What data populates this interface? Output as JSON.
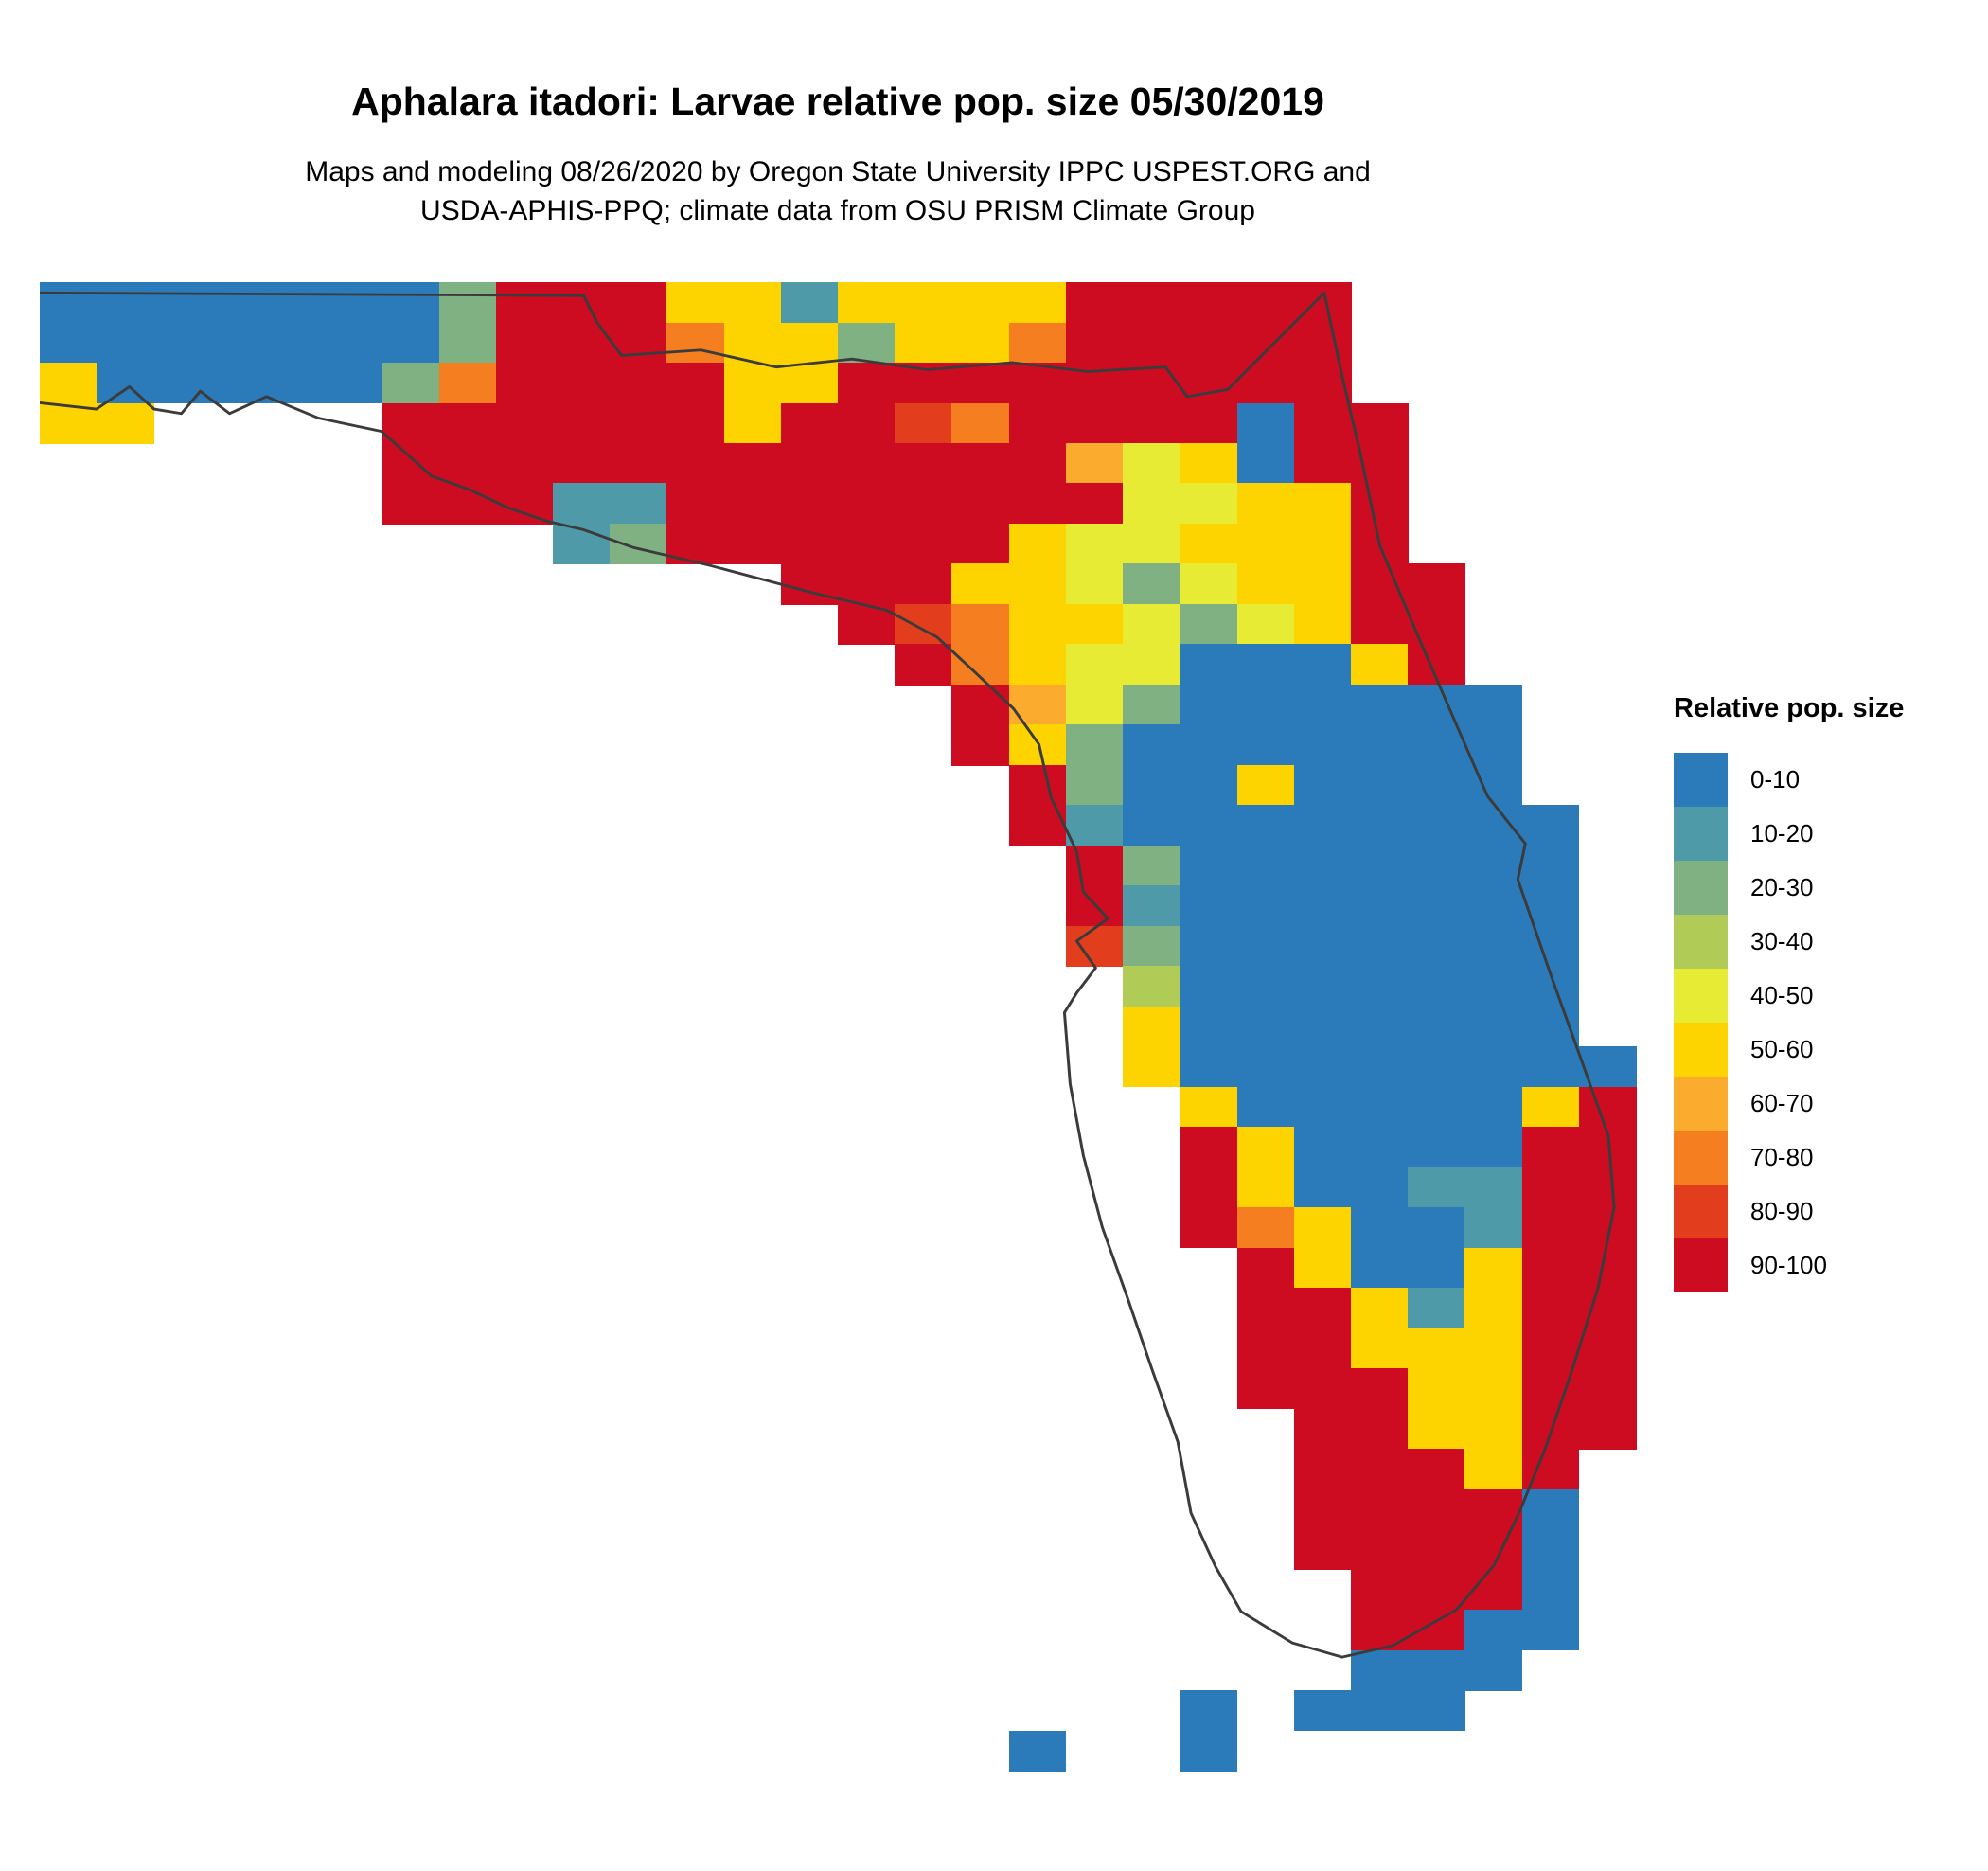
{
  "header": {
    "title": "Aphalara itadori: Larvae relative pop. size 05/30/2019",
    "subtitle_line1": "Maps and modeling 08/26/2020 by Oregon State University IPPC USPEST.ORG and",
    "subtitle_line2": "USDA-APHIS-PPQ; climate data from OSU PRISM Climate Group"
  },
  "legend": {
    "title": "Relative pop. size",
    "items": [
      {
        "label": "0-10",
        "color": "#2b7bba"
      },
      {
        "label": "10-20",
        "color": "#4e9aa8"
      },
      {
        "label": "20-30",
        "color": "#7fb183"
      },
      {
        "label": "30-40",
        "color": "#b0cc56"
      },
      {
        "label": "40-50",
        "color": "#e8eb34"
      },
      {
        "label": "50-60",
        "color": "#fed400"
      },
      {
        "label": "60-70",
        "color": "#fbab2d"
      },
      {
        "label": "70-80",
        "color": "#f57e20"
      },
      {
        "label": "80-90",
        "color": "#e23e1d"
      },
      {
        "label": "90-100",
        "color": "#cd0c22"
      }
    ]
  },
  "map": {
    "region": "Florida",
    "outline_color": "#3b3b3b",
    "grid": [
      "00000002999551555599999.....",
      "00000002999755255799999.....",
      "50000027999955999999999.....",
      "55....999999599879999099....",
      "......999999999999645099....",
      "......999119999999944559....",
      ".........129999995445559....",
      ".............999554245599...",
      "..............98755424599...",
      "...............9754400059...",
      "................9642000000..",
      "................9520000000..",
      ".................920050000..",
      ".................9100000000.",
      "..................920000000.",
      "..................910000000.",
      "..................820000000.",
      "...................30000000.",
      "...................50000000.",
      "...................500000000",
      "....................50000059",
      "....................95000099",
      "....................95001199",
      "....................97500199",
      ".....................9500599",
      ".....................9951599",
      ".....................9955599",
      ".....................9995599",
      "......................995599",
      "......................99959.",
      "......................99990.",
      "......................99990.",
      ".......................9990.",
      ".......................9900.",
      ".......................000..",
      "....................0.000...",
      ".................0..0......."
    ],
    "outline": [
      [
        0,
        12
      ],
      [
        576,
        15
      ],
      [
        590,
        45
      ],
      [
        616,
        82
      ],
      [
        700,
        76
      ],
      [
        780,
        95
      ],
      [
        860,
        86
      ],
      [
        940,
        98
      ],
      [
        1030,
        90
      ],
      [
        1110,
        100
      ],
      [
        1192,
        95
      ],
      [
        1215,
        128
      ],
      [
        1258,
        120
      ],
      [
        1360,
        12
      ],
      [
        1379,
        105
      ],
      [
        1399,
        195
      ],
      [
        1419,
        295
      ],
      [
        1459,
        395
      ],
      [
        1500,
        495
      ],
      [
        1533,
        575
      ],
      [
        1573,
        628
      ],
      [
        1565,
        668
      ],
      [
        1600,
        775
      ],
      [
        1634,
        875
      ],
      [
        1661,
        955
      ],
      [
        1667,
        1035
      ],
      [
        1650,
        1125
      ],
      [
        1620,
        1225
      ],
      [
        1594,
        1305
      ],
      [
        1567,
        1375
      ],
      [
        1540,
        1435
      ],
      [
        1500,
        1485
      ],
      [
        1433,
        1525
      ],
      [
        1379,
        1538
      ],
      [
        1326,
        1522
      ],
      [
        1272,
        1487
      ],
      [
        1245,
        1437
      ],
      [
        1219,
        1377
      ],
      [
        1205,
        1297
      ],
      [
        1178,
        1217
      ],
      [
        1152,
        1137
      ],
      [
        1125,
        1057
      ],
      [
        1105,
        977
      ],
      [
        1091,
        897
      ],
      [
        1085,
        817
      ],
      [
        1098,
        795
      ],
      [
        1118,
        767
      ],
      [
        1098,
        737
      ],
      [
        1131,
        712
      ],
      [
        1105,
        682
      ],
      [
        1098,
        637
      ],
      [
        1071,
        577
      ],
      [
        1058,
        517
      ],
      [
        1031,
        477
      ],
      [
        991,
        437
      ],
      [
        950,
        397
      ],
      [
        897,
        367
      ],
      [
        817,
        347
      ],
      [
        710,
        317
      ],
      [
        629,
        297
      ],
      [
        576,
        277
      ],
      [
        536,
        267
      ],
      [
        495,
        252
      ],
      [
        455,
        232
      ],
      [
        415,
        217
      ],
      [
        362,
        167
      ],
      [
        295,
        152
      ],
      [
        240,
        128
      ],
      [
        201,
        147
      ],
      [
        170,
        122
      ],
      [
        150,
        147
      ],
      [
        121,
        142
      ],
      [
        95,
        117
      ],
      [
        60,
        142
      ],
      [
        0,
        135
      ]
    ]
  }
}
